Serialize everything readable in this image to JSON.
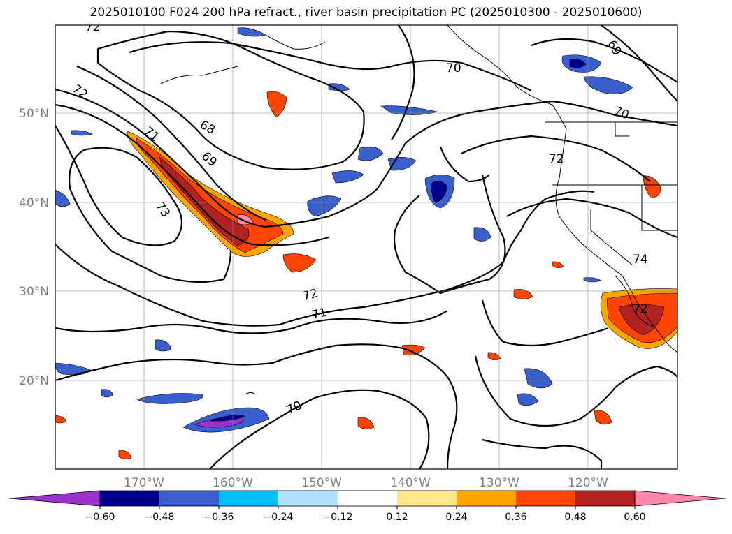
{
  "title": "2025010100 F024 200 hPa refract., river basin precipitation PC (2025010300 - 2025010600)",
  "map": {
    "lat_labels": [
      "50°N",
      "40°N",
      "30°N",
      "20°N"
    ],
    "lon_labels": [
      "170°W",
      "160°W",
      "150°W",
      "140°W",
      "130°W",
      "120°W"
    ],
    "grid": true,
    "contour_color": "#000000",
    "contour_labels": [
      "72",
      "72",
      "71",
      "68",
      "69",
      "73",
      "70",
      "69",
      "70",
      "72",
      "74",
      "72",
      "71",
      "70",
      "72"
    ]
  },
  "colorbar": {
    "ticks": [
      "−0.60",
      "−0.48",
      "−0.36",
      "−0.24",
      "−0.12",
      "0.12",
      "0.24",
      "0.36",
      "0.48",
      "0.60"
    ],
    "colors": [
      "#9933cc",
      "#00008b",
      "#3a5fcd",
      "#00bfff",
      "#b0e2ff",
      "#ffffff",
      "#ffe68c",
      "#ffa500",
      "#ff4500",
      "#b22222",
      "#ff88aa"
    ]
  }
}
